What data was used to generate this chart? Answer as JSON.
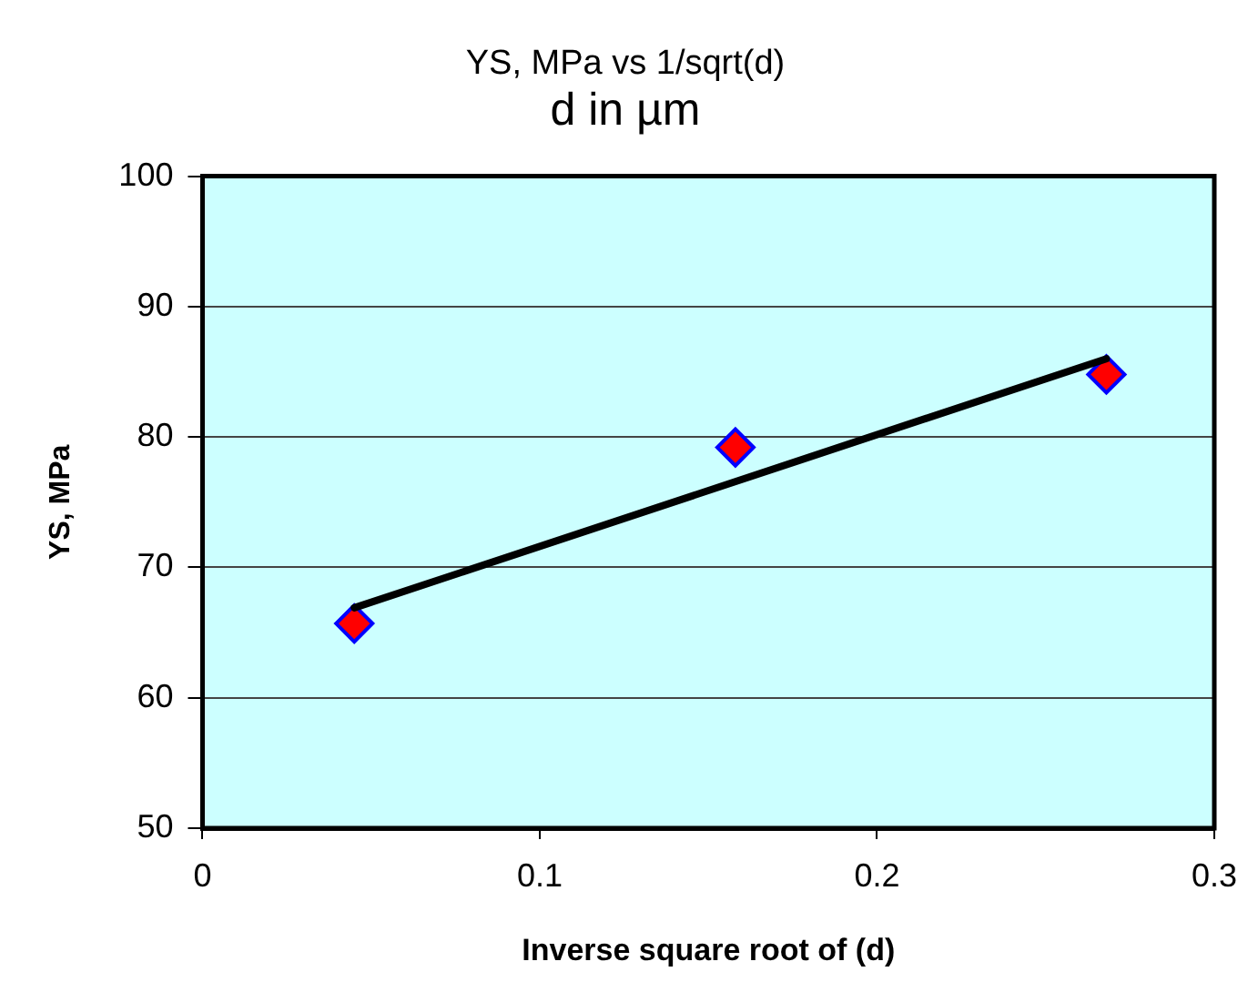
{
  "chart_data": {
    "type": "scatter",
    "title": "YS, MPa vs 1/sqrt(d)",
    "subtitle": "d in µm",
    "xlabel": "Inverse square root of (d)",
    "ylabel": "YS, MPa",
    "x": [
      0.045,
      0.158,
      0.268
    ],
    "series": [
      {
        "type": "scatter",
        "color": "#ff0000",
        "values": [
          65.7,
          79.2,
          84.8
        ],
        "marker": "diamond"
      },
      {
        "type": "line",
        "color": "#000000",
        "x": [
          0.045,
          0.268
        ],
        "values": [
          66.9,
          86.0
        ],
        "marker": "none",
        "line_style": "solid"
      }
    ],
    "xlim": [
      0,
      0.3
    ],
    "xticks": [
      0,
      0.1,
      0.2,
      0.3
    ],
    "ylim": [
      50,
      100
    ],
    "yticks": [
      50,
      60,
      70,
      80,
      90,
      100
    ],
    "grid": "y",
    "legend": false
  }
}
